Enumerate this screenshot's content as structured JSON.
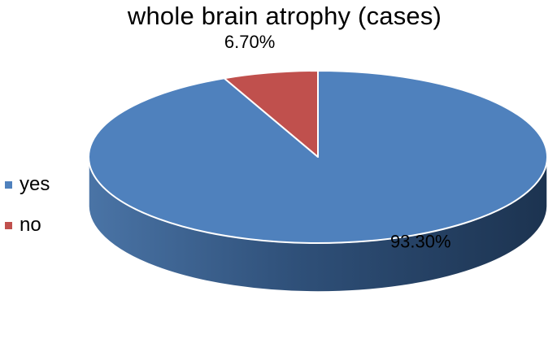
{
  "chart_data": {
    "type": "pie",
    "title": "whole brain atrophy (cases)",
    "categories": [
      "yes",
      "no"
    ],
    "values": [
      93.3,
      6.7
    ],
    "data_labels": [
      "93.30%",
      "6.70%"
    ],
    "colors": [
      "#4F81BD",
      "#C0504D"
    ],
    "style": "3d",
    "legend_position": "left"
  }
}
